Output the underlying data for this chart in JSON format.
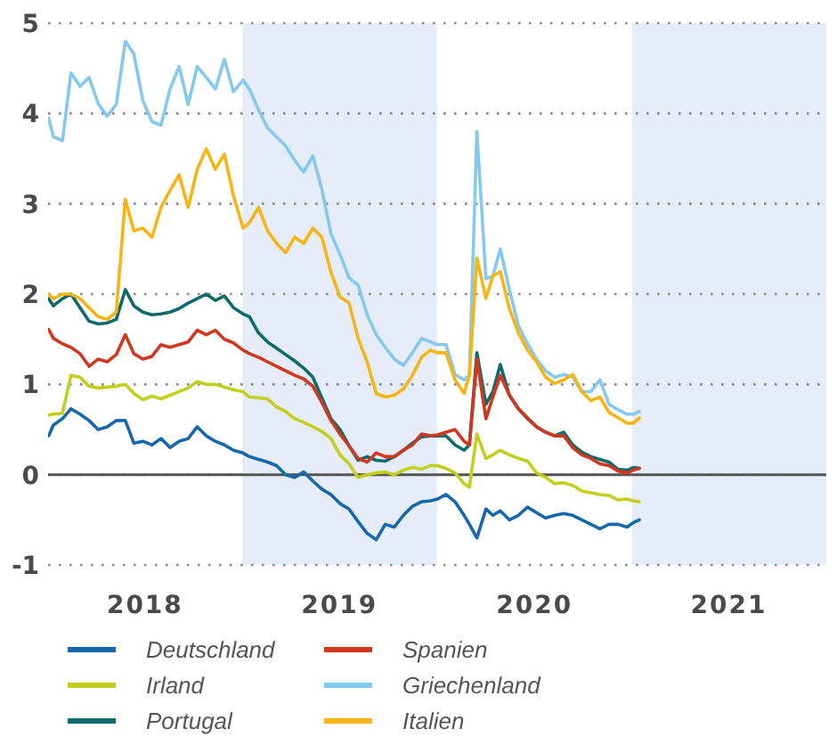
{
  "chart_data": {
    "type": "line",
    "x": [
      "2018-01-02",
      "2018-01-11",
      "2018-01-28",
      "2018-02-13",
      "2018-03-02",
      "2018-03-19",
      "2018-04-05",
      "2018-04-22",
      "2018-05-09",
      "2018-05-26",
      "2018-06-11",
      "2018-06-28",
      "2018-07-15",
      "2018-08-01",
      "2018-08-18",
      "2018-09-04",
      "2018-09-21",
      "2018-10-08",
      "2018-10-25",
      "2018-11-11",
      "2018-11-28",
      "2018-12-15",
      "2019-01-02",
      "2019-01-14",
      "2019-01-31",
      "2019-02-17",
      "2019-03-06",
      "2019-03-23",
      "2019-04-09",
      "2019-04-26",
      "2019-05-13",
      "2019-05-30",
      "2019-06-16",
      "2019-07-03",
      "2019-07-20",
      "2019-08-06",
      "2019-08-23",
      "2019-09-09",
      "2019-09-26",
      "2019-10-13",
      "2019-10-30",
      "2019-11-16",
      "2019-12-03",
      "2019-12-20",
      "2020-01-02",
      "2020-01-18",
      "2020-02-04",
      "2020-02-21",
      "2020-03-02",
      "2020-03-16",
      "2020-04-02",
      "2020-04-15",
      "2020-04-29",
      "2020-05-16",
      "2020-06-02",
      "2020-06-19",
      "2020-07-06",
      "2020-07-23",
      "2020-08-09",
      "2020-08-26",
      "2020-09-12",
      "2020-09-29",
      "2020-10-16",
      "2020-11-02",
      "2020-11-19",
      "2020-12-06",
      "2020-12-23",
      "2021-01-04",
      "2021-01-15"
    ],
    "series": [
      {
        "name": "Deutschland",
        "color": "#1568ad",
        "values": [
          0.43,
          0.55,
          0.62,
          0.73,
          0.67,
          0.6,
          0.5,
          0.53,
          0.6,
          0.6,
          0.35,
          0.37,
          0.33,
          0.4,
          0.3,
          0.37,
          0.4,
          0.53,
          0.43,
          0.37,
          0.33,
          0.27,
          0.24,
          0.2,
          0.17,
          0.14,
          0.1,
          0.0,
          -0.03,
          0.03,
          -0.07,
          -0.16,
          -0.22,
          -0.32,
          -0.38,
          -0.52,
          -0.65,
          -0.72,
          -0.55,
          -0.58,
          -0.45,
          -0.35,
          -0.3,
          -0.29,
          -0.27,
          -0.22,
          -0.3,
          -0.45,
          -0.55,
          -0.7,
          -0.38,
          -0.45,
          -0.4,
          -0.5,
          -0.45,
          -0.36,
          -0.42,
          -0.48,
          -0.45,
          -0.43,
          -0.45,
          -0.5,
          -0.55,
          -0.6,
          -0.55,
          -0.55,
          -0.58,
          -0.53,
          -0.5
        ]
      },
      {
        "name": "Irland",
        "color": "#c3cf1c",
        "values": [
          0.66,
          0.67,
          0.68,
          1.1,
          1.08,
          0.98,
          0.96,
          0.97,
          0.98,
          1.0,
          0.9,
          0.83,
          0.87,
          0.84,
          0.88,
          0.92,
          0.96,
          1.03,
          1.0,
          1.0,
          0.97,
          0.94,
          0.92,
          0.86,
          0.85,
          0.84,
          0.75,
          0.7,
          0.62,
          0.58,
          0.53,
          0.48,
          0.4,
          0.22,
          0.12,
          -0.03,
          0.0,
          0.02,
          0.03,
          0.0,
          0.05,
          0.08,
          0.06,
          0.1,
          0.1,
          0.07,
          0.02,
          -0.1,
          -0.14,
          0.45,
          0.18,
          0.22,
          0.27,
          0.22,
          0.18,
          0.15,
          0.02,
          -0.03,
          -0.1,
          -0.09,
          -0.12,
          -0.18,
          -0.2,
          -0.22,
          -0.23,
          -0.28,
          -0.27,
          -0.29,
          -0.3
        ]
      },
      {
        "name": "Portugal",
        "color": "#0f6b6b",
        "values": [
          1.95,
          1.87,
          1.95,
          2.0,
          1.85,
          1.7,
          1.67,
          1.68,
          1.72,
          2.05,
          1.87,
          1.8,
          1.77,
          1.78,
          1.8,
          1.84,
          1.9,
          1.95,
          2.0,
          1.93,
          1.98,
          1.85,
          1.78,
          1.75,
          1.57,
          1.47,
          1.4,
          1.33,
          1.26,
          1.18,
          1.08,
          0.85,
          0.62,
          0.5,
          0.32,
          0.16,
          0.2,
          0.16,
          0.15,
          0.2,
          0.27,
          0.35,
          0.42,
          0.43,
          0.43,
          0.43,
          0.33,
          0.27,
          0.33,
          1.35,
          0.78,
          0.92,
          1.22,
          0.88,
          0.73,
          0.62,
          0.53,
          0.47,
          0.43,
          0.47,
          0.33,
          0.25,
          0.2,
          0.17,
          0.14,
          0.06,
          0.05,
          0.08,
          0.07
        ]
      },
      {
        "name": "Spanien",
        "color": "#d2361f",
        "values": [
          1.61,
          1.51,
          1.45,
          1.41,
          1.34,
          1.2,
          1.28,
          1.25,
          1.33,
          1.55,
          1.34,
          1.28,
          1.31,
          1.44,
          1.41,
          1.44,
          1.47,
          1.6,
          1.55,
          1.6,
          1.5,
          1.46,
          1.38,
          1.34,
          1.3,
          1.25,
          1.2,
          1.15,
          1.1,
          1.06,
          0.98,
          0.8,
          0.6,
          0.45,
          0.32,
          0.18,
          0.14,
          0.24,
          0.2,
          0.2,
          0.27,
          0.33,
          0.45,
          0.43,
          0.44,
          0.47,
          0.5,
          0.37,
          0.33,
          1.28,
          0.62,
          0.86,
          1.1,
          0.88,
          0.73,
          0.63,
          0.53,
          0.47,
          0.43,
          0.43,
          0.3,
          0.22,
          0.18,
          0.12,
          0.1,
          0.04,
          0.02,
          0.05,
          0.07
        ]
      },
      {
        "name": "Griechenland",
        "color": "#86c9ee",
        "values": [
          3.95,
          3.74,
          3.7,
          4.45,
          4.3,
          4.4,
          4.11,
          3.97,
          4.1,
          4.8,
          4.66,
          4.14,
          3.91,
          3.87,
          4.27,
          4.52,
          4.1,
          4.52,
          4.4,
          4.27,
          4.6,
          4.24,
          4.37,
          4.27,
          4.04,
          3.84,
          3.74,
          3.64,
          3.48,
          3.35,
          3.53,
          3.16,
          2.67,
          2.44,
          2.18,
          2.1,
          1.77,
          1.55,
          1.41,
          1.28,
          1.21,
          1.35,
          1.51,
          1.47,
          1.44,
          1.44,
          1.11,
          1.05,
          1.1,
          3.8,
          2.17,
          2.2,
          2.5,
          2.05,
          1.65,
          1.45,
          1.28,
          1.15,
          1.08,
          1.11,
          1.08,
          0.92,
          0.92,
          1.05,
          0.78,
          0.72,
          0.67,
          0.67,
          0.7
        ]
      },
      {
        "name": "Italien",
        "color": "#f6b514",
        "values": [
          2.0,
          1.95,
          2.0,
          2.0,
          1.95,
          1.85,
          1.75,
          1.72,
          1.8,
          3.05,
          2.7,
          2.73,
          2.63,
          2.96,
          3.15,
          3.32,
          2.96,
          3.38,
          3.61,
          3.38,
          3.55,
          3.09,
          2.73,
          2.79,
          2.96,
          2.7,
          2.56,
          2.46,
          2.63,
          2.56,
          2.73,
          2.63,
          2.24,
          1.97,
          1.9,
          1.51,
          1.25,
          0.9,
          0.86,
          0.88,
          0.95,
          1.1,
          1.3,
          1.38,
          1.35,
          1.35,
          1.05,
          0.9,
          1.1,
          2.4,
          1.95,
          2.2,
          2.25,
          1.84,
          1.57,
          1.38,
          1.25,
          1.08,
          1.01,
          1.05,
          1.11,
          0.92,
          0.82,
          0.86,
          0.69,
          0.63,
          0.57,
          0.57,
          0.63
        ]
      }
    ],
    "xlim": [
      "2018-01-01",
      "2022-01-01"
    ],
    "xticks": [
      {
        "value": "2018-07-02",
        "label": "2018"
      },
      {
        "value": "2019-07-02",
        "label": "2019"
      },
      {
        "value": "2020-07-02",
        "label": "2020"
      },
      {
        "value": "2021-07-02",
        "label": "2021"
      }
    ],
    "ylim": [
      -1,
      5
    ],
    "yticks": [
      -1,
      0,
      1,
      2,
      3,
      4,
      5
    ],
    "grid": "y",
    "legend": "bottom",
    "bands": [
      {
        "axis": "x",
        "from": "2019-01-01",
        "to": "2020-01-01",
        "color": "#e6edf8"
      },
      {
        "axis": "x",
        "from": "2021-01-01",
        "to": "2022-01-01",
        "color": "#e6edf8"
      }
    ],
    "ref_lines": [
      {
        "axis": "y",
        "value": 0,
        "color": "#555555"
      }
    ]
  }
}
